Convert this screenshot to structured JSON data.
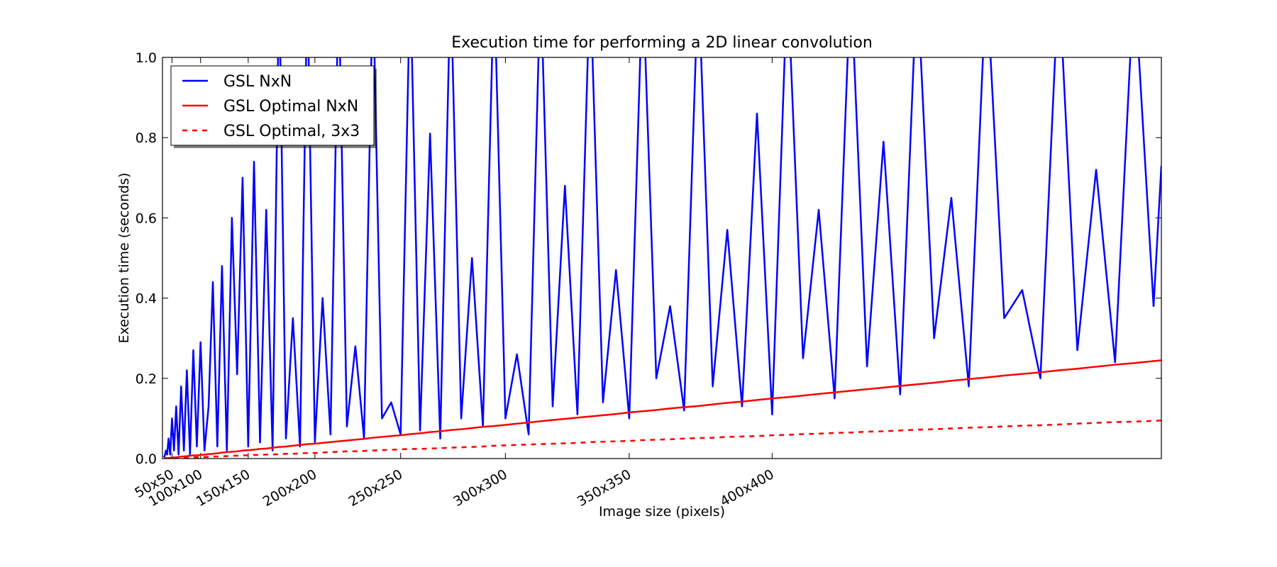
{
  "chart_data": {
    "type": "line",
    "title": "Execution time for performing a 2D linear convolution",
    "xlabel": "Image size (pixels)",
    "ylabel": "Execution time (seconds)",
    "xlim": [
      0,
      262144
    ],
    "ylim": [
      0,
      1.0
    ],
    "xticks": [
      {
        "value": 2500,
        "label": "50x50"
      },
      {
        "value": 10000,
        "label": "100x100"
      },
      {
        "value": 22500,
        "label": "150x150"
      },
      {
        "value": 40000,
        "label": "200x200"
      },
      {
        "value": 62500,
        "label": "250x250"
      },
      {
        "value": 90000,
        "label": "300x300"
      },
      {
        "value": 122500,
        "label": "350x350"
      },
      {
        "value": 160000,
        "label": "400x400"
      }
    ],
    "yticks": [
      {
        "value": 0,
        "label": "0.0"
      },
      0.2,
      0.4,
      0.6,
      0.8,
      {
        "value": 1,
        "label": "1.0"
      }
    ],
    "legend": "upper left",
    "x": [
      400,
      625,
      900,
      1225,
      1600,
      2025,
      2500,
      3025,
      3600,
      4225,
      4900,
      5625,
      6400,
      7225,
      8100,
      9025,
      10000,
      11025,
      12100,
      13225,
      14400,
      15625,
      16900,
      18225,
      19600,
      21025,
      22500,
      24025,
      25600,
      27225,
      28900,
      30625,
      32400,
      34225,
      36100,
      38025,
      40000,
      42025,
      44100,
      46225,
      48400,
      50625,
      52900,
      55225,
      57600,
      60025,
      62500,
      65025,
      67600,
      70225,
      72900,
      75625,
      78400,
      81225,
      84100,
      87025,
      90000,
      93025,
      96100,
      99225,
      102400,
      105625,
      108900,
      112225,
      115600,
      119025,
      122500,
      126025,
      129600,
      133225,
      136900,
      140625,
      144400,
      148225,
      152100,
      156025,
      160000,
      164025,
      168100,
      172225,
      176400,
      180625,
      184900,
      189225,
      193600,
      198025,
      202500,
      207025,
      211600,
      216225,
      220900,
      225625,
      230400,
      235225,
      240100,
      245025,
      250000,
      255025,
      260100,
      262144
    ],
    "series": [
      {
        "name": "GSL NxN",
        "color": "#0000ff",
        "linestyle": "solid",
        "values": [
          0.003,
          0.008,
          0.02,
          0.01,
          0.05,
          0.01,
          0.1,
          0.02,
          0.13,
          0.01,
          0.18,
          0.02,
          0.22,
          0.01,
          0.27,
          0.03,
          0.29,
          0.02,
          0.13,
          0.44,
          0.03,
          0.48,
          0.02,
          0.6,
          0.21,
          0.7,
          0.03,
          0.74,
          0.04,
          0.62,
          0.02,
          1.2,
          0.05,
          0.35,
          0.03,
          1.2,
          0.04,
          0.4,
          0.06,
          1.2,
          0.08,
          0.28,
          0.05,
          1.2,
          0.1,
          0.14,
          0.06,
          1.2,
          0.07,
          0.81,
          0.05,
          1.2,
          0.1,
          0.5,
          0.08,
          1.2,
          0.1,
          0.26,
          0.06,
          1.2,
          0.13,
          0.68,
          0.11,
          1.2,
          0.14,
          0.47,
          0.1,
          1.2,
          0.2,
          0.38,
          0.12,
          1.2,
          0.18,
          0.57,
          0.13,
          0.86,
          0.11,
          1.2,
          0.25,
          0.62,
          0.15,
          1.2,
          0.23,
          0.79,
          0.16,
          1.2,
          0.3,
          0.65,
          0.18,
          1.2,
          0.35,
          0.42,
          0.2,
          1.2,
          0.27,
          0.72,
          0.24,
          1.2,
          0.38,
          0.73
        ]
      },
      {
        "name": "GSL Optimal NxN",
        "color": "#ff0000",
        "linestyle": "solid",
        "values": [
          0.0,
          0.001,
          0.001,
          0.001,
          0.001,
          0.002,
          0.002,
          0.003,
          0.003,
          0.004,
          0.005,
          0.005,
          0.006,
          0.007,
          0.008,
          0.008,
          0.009,
          0.01,
          0.011,
          0.012,
          0.013,
          0.015,
          0.016,
          0.017,
          0.018,
          0.02,
          0.021,
          0.022,
          0.024,
          0.025,
          0.027,
          0.029,
          0.03,
          0.032,
          0.034,
          0.036,
          0.037,
          0.039,
          0.041,
          0.043,
          0.045,
          0.047,
          0.049,
          0.052,
          0.054,
          0.056,
          0.058,
          0.061,
          0.063,
          0.066,
          0.068,
          0.071,
          0.073,
          0.076,
          0.079,
          0.081,
          0.084,
          0.087,
          0.09,
          0.093,
          0.096,
          0.099,
          0.102,
          0.105,
          0.108,
          0.111,
          0.115,
          0.118,
          0.121,
          0.125,
          0.128,
          0.131,
          0.135,
          0.139,
          0.142,
          0.146,
          0.15,
          0.153,
          0.157,
          0.161,
          0.165,
          0.169,
          0.173,
          0.177,
          0.181,
          0.185,
          0.189,
          0.194,
          0.198,
          0.202,
          0.207,
          0.211,
          0.215,
          0.22,
          0.224,
          0.229,
          0.234,
          0.238,
          0.243,
          0.245
        ]
      },
      {
        "name": "GSL Optimal, 3x3",
        "color": "#ff0000",
        "linestyle": "dashed",
        "values": [
          0.0,
          0.0,
          0.0,
          0.0,
          0.001,
          0.001,
          0.001,
          0.001,
          0.001,
          0.002,
          0.002,
          0.002,
          0.002,
          0.003,
          0.003,
          0.003,
          0.004,
          0.004,
          0.004,
          0.005,
          0.005,
          0.006,
          0.006,
          0.007,
          0.007,
          0.008,
          0.008,
          0.009,
          0.009,
          0.01,
          0.01,
          0.011,
          0.012,
          0.012,
          0.013,
          0.014,
          0.014,
          0.015,
          0.016,
          0.017,
          0.018,
          0.018,
          0.019,
          0.02,
          0.021,
          0.022,
          0.023,
          0.024,
          0.024,
          0.025,
          0.026,
          0.027,
          0.028,
          0.029,
          0.03,
          0.032,
          0.033,
          0.034,
          0.035,
          0.036,
          0.037,
          0.038,
          0.039,
          0.041,
          0.042,
          0.043,
          0.044,
          0.046,
          0.047,
          0.048,
          0.05,
          0.051,
          0.052,
          0.054,
          0.055,
          0.056,
          0.058,
          0.059,
          0.061,
          0.062,
          0.064,
          0.065,
          0.067,
          0.068,
          0.07,
          0.072,
          0.073,
          0.075,
          0.077,
          0.078,
          0.08,
          0.082,
          0.083,
          0.085,
          0.087,
          0.089,
          0.091,
          0.092,
          0.094,
          0.095
        ]
      }
    ]
  }
}
